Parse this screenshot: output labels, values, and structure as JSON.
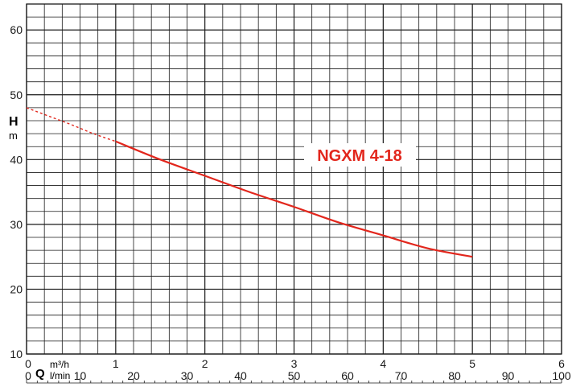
{
  "chart_data": {
    "type": "line",
    "title": "NGXM 4-18",
    "ylabel": "H",
    "yunit": "m",
    "xlabel": "Q",
    "xunit": "m³/h",
    "xunit2": "l/min",
    "xlim": [
      0,
      6
    ],
    "ylim": [
      10,
      64
    ],
    "yticks": [
      10,
      20,
      30,
      40,
      50,
      60
    ],
    "xticks": [
      0,
      1,
      2,
      3,
      4,
      5,
      6
    ],
    "x2ticks": [
      0,
      10,
      20,
      30,
      40,
      50,
      60,
      70,
      80,
      90,
      100
    ],
    "grid": true,
    "color": "#e2261c",
    "series": [
      {
        "style": "dashed",
        "x": [
          0,
          0.25,
          0.5,
          0.75,
          1.0
        ],
        "y": [
          48.0,
          46.7,
          45.4,
          44.0,
          42.8
        ]
      },
      {
        "style": "solid",
        "x": [
          1.0,
          1.5,
          2.0,
          2.5,
          3.0,
          3.5,
          4.0,
          4.5,
          5.0
        ],
        "y": [
          42.8,
          40.0,
          37.5,
          35.0,
          32.7,
          30.3,
          28.3,
          26.3,
          25.0
        ]
      }
    ]
  }
}
